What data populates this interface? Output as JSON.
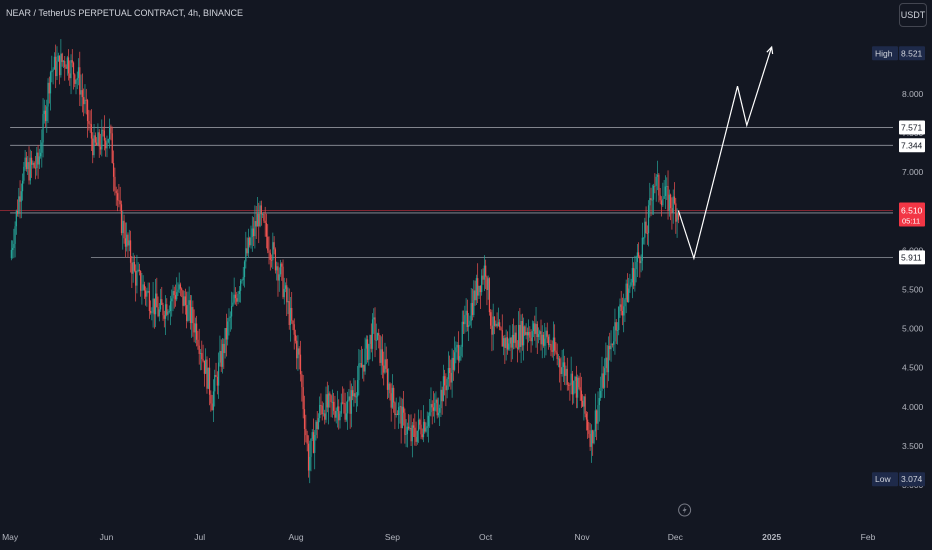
{
  "header": {
    "title": "NEAR / TetherUS PERPETUAL CONTRACT, 4h, BINANCE",
    "currency_button": "USDT"
  },
  "colors": {
    "background": "#131722",
    "up": "#26a69a",
    "down": "#ef5350",
    "axis_text": "#b2b5be",
    "level_line": "#b2b5be",
    "current_price": "#f23645",
    "projection": "#ffffff"
  },
  "chart_data": {
    "type": "candlestick",
    "x_range": [
      "2024-05-01",
      "2025-02-01"
    ],
    "x_ticks": [
      {
        "label": "May",
        "date": "2024-05-01"
      },
      {
        "label": "Jun",
        "date": "2024-06-01"
      },
      {
        "label": "Jul",
        "date": "2024-07-01"
      },
      {
        "label": "Aug",
        "date": "2024-08-01"
      },
      {
        "label": "Sep",
        "date": "2024-09-01"
      },
      {
        "label": "Oct",
        "date": "2024-10-01"
      },
      {
        "label": "Nov",
        "date": "2024-11-01"
      },
      {
        "label": "Dec",
        "date": "2024-12-01"
      },
      {
        "label": "2025",
        "date": "2025-01-01",
        "bold": true
      },
      {
        "label": "Feb",
        "date": "2025-02-01"
      }
    ],
    "y_ticks": [
      "8.000",
      "7.500",
      "7.000",
      "6.500",
      "6.000",
      "5.500",
      "5.000",
      "4.500",
      "4.000",
      "3.500",
      "3.000"
    ],
    "y_range": [
      2.8,
      8.55
    ],
    "high": {
      "label": "High",
      "value": "8.521"
    },
    "low": {
      "label": "Low",
      "value": "3.074"
    },
    "current_price": {
      "value": "6.510",
      "countdown": "05:11"
    },
    "levels": [
      {
        "value": 7.571,
        "label": "7.571",
        "from": "2024-05-01"
      },
      {
        "value": 7.344,
        "label": "7.344",
        "from": "2024-05-01"
      },
      {
        "value": 6.479,
        "label": "6.479",
        "from": "2024-05-01"
      },
      {
        "value": 5.911,
        "label": "5.911",
        "from": "2024-05-27"
      }
    ],
    "price_path": [
      [
        "2024-05-01",
        5.9
      ],
      [
        "2024-05-05",
        7.0
      ],
      [
        "2024-05-10",
        7.1
      ],
      [
        "2024-05-14",
        8.3
      ],
      [
        "2024-05-19",
        8.45
      ],
      [
        "2024-05-23",
        8.2
      ],
      [
        "2024-05-28",
        7.3
      ],
      [
        "2024-06-02",
        7.5
      ],
      [
        "2024-06-05",
        6.5
      ],
      [
        "2024-06-10",
        5.7
      ],
      [
        "2024-06-18",
        5.2
      ],
      [
        "2024-06-24",
        5.5
      ],
      [
        "2024-06-30",
        5.0
      ],
      [
        "2024-07-05",
        4.1
      ],
      [
        "2024-07-10",
        5.0
      ],
      [
        "2024-07-15",
        5.8
      ],
      [
        "2024-07-20",
        6.45
      ],
      [
        "2024-07-27",
        5.7
      ],
      [
        "2024-08-02",
        4.6
      ],
      [
        "2024-08-05",
        3.3
      ],
      [
        "2024-08-09",
        4.0
      ],
      [
        "2024-08-18",
        4.0
      ],
      [
        "2024-08-26",
        5.0
      ],
      [
        "2024-09-01",
        4.1
      ],
      [
        "2024-09-07",
        3.6
      ],
      [
        "2024-09-15",
        4.0
      ],
      [
        "2024-09-21",
        4.6
      ],
      [
        "2024-09-28",
        5.5
      ],
      [
        "2024-10-01",
        5.8
      ],
      [
        "2024-10-03",
        5.0
      ],
      [
        "2024-10-08",
        4.8
      ],
      [
        "2024-10-14",
        5.0
      ],
      [
        "2024-10-20",
        4.9
      ],
      [
        "2024-10-26",
        4.5
      ],
      [
        "2024-10-31",
        4.2
      ],
      [
        "2024-11-04",
        3.6
      ],
      [
        "2024-11-07",
        4.2
      ],
      [
        "2024-11-12",
        5.1
      ],
      [
        "2024-11-16",
        5.5
      ],
      [
        "2024-11-22",
        6.3
      ],
      [
        "2024-11-24",
        6.9
      ],
      [
        "2024-11-27",
        6.7
      ],
      [
        "2024-12-02",
        6.51
      ]
    ],
    "projection": [
      [
        "2024-12-02",
        6.51
      ],
      [
        "2024-12-07",
        5.9
      ],
      [
        "2024-12-21",
        8.1
      ],
      [
        "2024-12-24",
        7.6
      ],
      [
        "2025-01-01",
        8.6
      ]
    ]
  }
}
